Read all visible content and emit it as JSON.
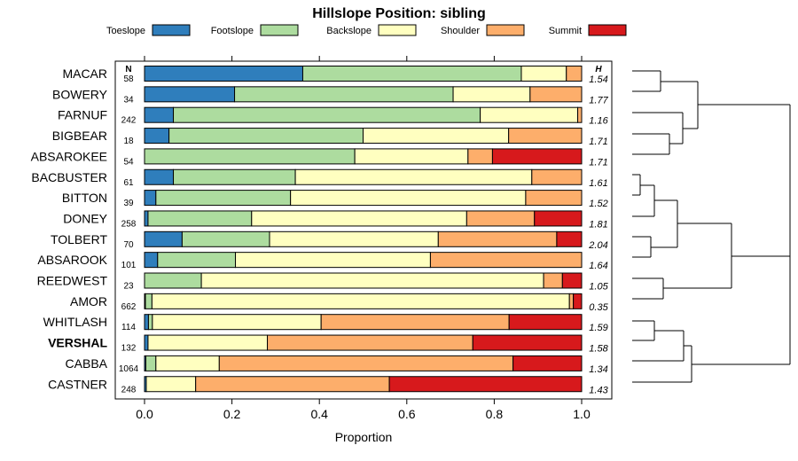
{
  "chart_data": {
    "type": "bar",
    "orientation": "horizontal",
    "stacked": true,
    "title": "Hillslope Position: sibling",
    "xlabel": "Proportion",
    "xlim": [
      0,
      1
    ],
    "xticks": [
      "0.0",
      "0.2",
      "0.4",
      "0.6",
      "0.8",
      "1.0"
    ],
    "xtick_values": [
      0,
      0.2,
      0.4,
      0.6,
      0.8,
      1.0
    ],
    "n_header": "N",
    "h_header": "H",
    "legend_position": "top",
    "series": [
      {
        "name": "Toeslope",
        "color": "#2f7ebc"
      },
      {
        "name": "Footslope",
        "color": "#addc9f"
      },
      {
        "name": "Backslope",
        "color": "#ffffc0"
      },
      {
        "name": "Shoulder",
        "color": "#fdae6b"
      },
      {
        "name": "Summit",
        "color": "#d7191c"
      }
    ],
    "rows": [
      {
        "name": "MACAR",
        "n": "58",
        "h": "1.54",
        "bold": false,
        "values": [
          0.362,
          0.5,
          0.103,
          0.035,
          0.0
        ]
      },
      {
        "name": "BOWERY",
        "n": "34",
        "h": "1.77",
        "bold": false,
        "values": [
          0.206,
          0.5,
          0.176,
          0.118,
          0.0
        ]
      },
      {
        "name": "FARNUF",
        "n": "242",
        "h": "1.16",
        "bold": false,
        "values": [
          0.066,
          0.702,
          0.223,
          0.009,
          0.0
        ]
      },
      {
        "name": "BIGBEAR",
        "n": "18",
        "h": "1.71",
        "bold": false,
        "values": [
          0.056,
          0.444,
          0.333,
          0.167,
          0.0
        ]
      },
      {
        "name": "ABSAROKEE",
        "n": "54",
        "h": "1.71",
        "bold": false,
        "values": [
          0.0,
          0.481,
          0.259,
          0.056,
          0.204
        ]
      },
      {
        "name": "BACBUSTER",
        "n": "61",
        "h": "1.61",
        "bold": false,
        "values": [
          0.066,
          0.279,
          0.541,
          0.114,
          0.0
        ]
      },
      {
        "name": "BITTON",
        "n": "39",
        "h": "1.52",
        "bold": false,
        "values": [
          0.026,
          0.308,
          0.538,
          0.128,
          0.0
        ]
      },
      {
        "name": "DONEY",
        "n": "258",
        "h": "1.81",
        "bold": false,
        "values": [
          0.008,
          0.237,
          0.492,
          0.155,
          0.108
        ]
      },
      {
        "name": "TOLBERT",
        "n": "70",
        "h": "2.04",
        "bold": false,
        "values": [
          0.086,
          0.2,
          0.386,
          0.271,
          0.057
        ]
      },
      {
        "name": "ABSAROOK",
        "n": "101",
        "h": "1.64",
        "bold": false,
        "values": [
          0.03,
          0.178,
          0.446,
          0.346,
          0.0
        ]
      },
      {
        "name": "REEDWEST",
        "n": "23",
        "h": "1.05",
        "bold": false,
        "values": [
          0.0,
          0.13,
          0.783,
          0.043,
          0.044
        ]
      },
      {
        "name": "AMOR",
        "n": "662",
        "h": "0.35",
        "bold": false,
        "values": [
          0.002,
          0.015,
          0.955,
          0.009,
          0.019
        ]
      },
      {
        "name": "WHITLASH",
        "n": "114",
        "h": "1.59",
        "bold": false,
        "values": [
          0.009,
          0.009,
          0.386,
          0.43,
          0.166
        ]
      },
      {
        "name": "VERSHAL",
        "n": "132",
        "h": "1.58",
        "bold": true,
        "values": [
          0.008,
          0.0,
          0.273,
          0.47,
          0.249
        ]
      },
      {
        "name": "CABBA",
        "n": "1064",
        "h": "1.34",
        "bold": false,
        "values": [
          0.003,
          0.023,
          0.145,
          0.672,
          0.157
        ]
      },
      {
        "name": "CASTNER",
        "n": "248",
        "h": "1.43",
        "bold": false,
        "values": [
          0.004,
          0.0,
          0.113,
          0.443,
          0.44
        ]
      }
    ]
  }
}
